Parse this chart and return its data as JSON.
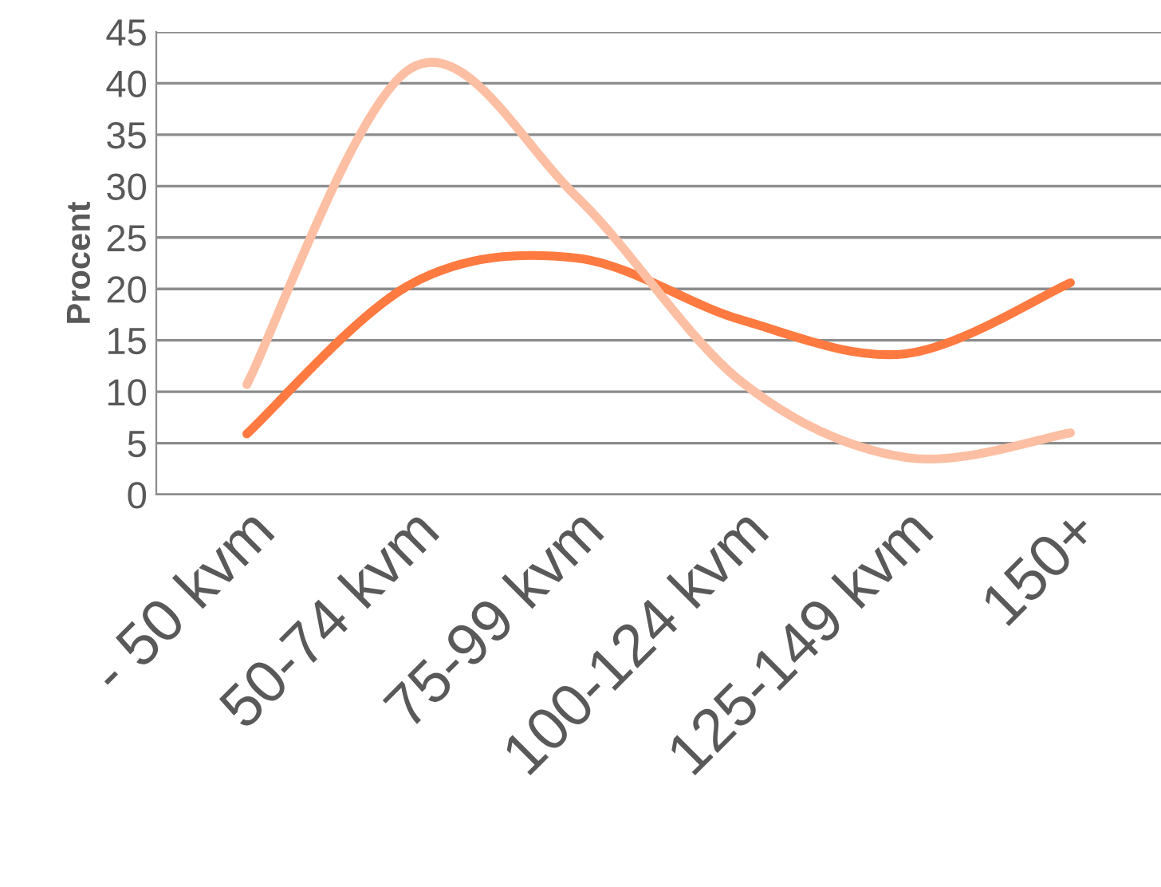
{
  "chart_data": {
    "type": "line",
    "ylabel": "Procent",
    "categories": [
      "- 50 kvm",
      "50-74 kvm",
      "75-99 kvm",
      "100-124 kvm",
      "125-149 kvm",
      "150+"
    ],
    "series": [
      {
        "color": "#ff7a40",
        "values": [
          5.9,
          20.5,
          23,
          17,
          13.7,
          20.6
        ]
      },
      {
        "color": "#fdbfa3",
        "values": [
          10.7,
          41.5,
          29,
          11,
          3.6,
          6
        ]
      }
    ],
    "ylim": [
      0,
      45
    ],
    "yticks": [
      0,
      5,
      10,
      15,
      20,
      25,
      30,
      35,
      40,
      45
    ],
    "grid": "y",
    "marker": "none",
    "line_style": "solid"
  }
}
